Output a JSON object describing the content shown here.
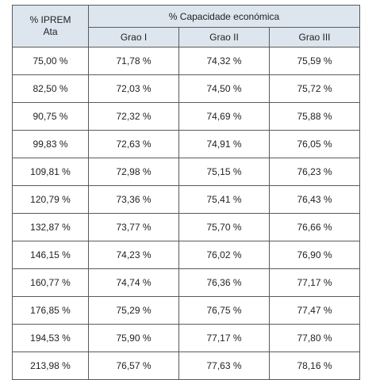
{
  "table": {
    "header": {
      "iprem_line1": "% IPREM",
      "iprem_line2": "Ata",
      "capacity": "% Capacidade económica",
      "graos": [
        "Grao I",
        "Grao II",
        "Grao III"
      ]
    },
    "rows": [
      [
        "75,00 %",
        "71,78 %",
        "74,32 %",
        "75,59 %"
      ],
      [
        "82,50 %",
        "72,03 %",
        "74,50 %",
        "75,72 %"
      ],
      [
        "90,75 %",
        "72,32 %",
        "74,69 %",
        "75,88 %"
      ],
      [
        "99,83 %",
        "72,63 %",
        "74,91 %",
        "76,05 %"
      ],
      [
        "109,81 %",
        "72,98 %",
        "75,15 %",
        "76,23 %"
      ],
      [
        "120,79 %",
        "73,36 %",
        "75,41 %",
        "76,43 %"
      ],
      [
        "132,87 %",
        "73,77 %",
        "75,70 %",
        "76,66 %"
      ],
      [
        "146,15 %",
        "74,23 %",
        "76,02 %",
        "76,90 %"
      ],
      [
        "160,77 %",
        "74,74 %",
        "76,36 %",
        "77,17 %"
      ],
      [
        "176,85 %",
        "75,29 %",
        "76,75 %",
        "77,47 %"
      ],
      [
        "194,53 %",
        "75,90 %",
        "77,17 %",
        "77,80 %"
      ],
      [
        "213,98 %",
        "76,57 %",
        "77,63 %",
        "78,16 %"
      ]
    ]
  }
}
